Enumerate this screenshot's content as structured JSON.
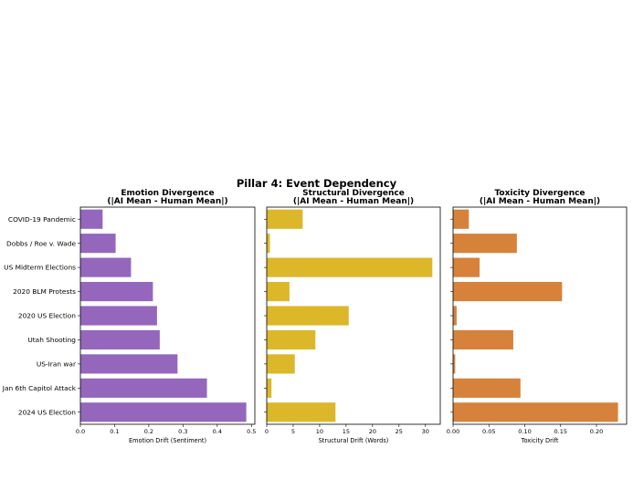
{
  "chart_data": [
    {
      "type": "bar",
      "orientation": "horizontal",
      "suptitle": "Pillar 4: Event Dependency",
      "title_lines": [
        "Emotion Divergence",
        "(|AI Mean - Human Mean|)"
      ],
      "xlabel": "Emotion Drift (Sentiment)",
      "ylabel": "",
      "xlim": [
        0,
        0.51
      ],
      "xticks": [
        0.0,
        0.1,
        0.2,
        0.3,
        0.4,
        0.5
      ],
      "xtick_labels": [
        "0.0",
        "0.1",
        "0.2",
        "0.3",
        "0.4",
        "0.5"
      ],
      "color": "#9467bd",
      "categories": [
        "COVID-19 Pandemic",
        "Dobbs / Roe v. Wade",
        "US Midterm Elections",
        "2020 BLM Protests",
        "2020 US Election",
        "Utah Shooting",
        "US-Iran war",
        "Jan 6th Capitol Attack",
        "2024 US Election"
      ],
      "values": [
        0.065,
        0.103,
        0.148,
        0.212,
        0.224,
        0.232,
        0.284,
        0.37,
        0.485
      ]
    },
    {
      "type": "bar",
      "orientation": "horizontal",
      "title_lines": [
        "Structural Divergence",
        "(|AI Mean - Human Mean|)"
      ],
      "xlabel": "Structural Drift (Words)",
      "ylabel": "",
      "xlim": [
        0,
        32.8
      ],
      "xticks": [
        0,
        5,
        10,
        15,
        20,
        25,
        30
      ],
      "xtick_labels": [
        "0",
        "5",
        "10",
        "15",
        "20",
        "25",
        "30"
      ],
      "color": "#dcb72a",
      "categories": [
        "COVID-19 Pandemic",
        "Dobbs / Roe v. Wade",
        "US Midterm Elections",
        "2020 BLM Protests",
        "2020 US Election",
        "Utah Shooting",
        "US-Iran war",
        "Jan 6th Capitol Attack",
        "2024 US Election"
      ],
      "values": [
        6.8,
        0.6,
        31.3,
        4.3,
        15.5,
        9.2,
        5.3,
        0.9,
        13.0
      ]
    },
    {
      "type": "bar",
      "orientation": "horizontal",
      "title_lines": [
        "Toxicity Divergence",
        "(|AI Mean - Human Mean|)"
      ],
      "xlabel": "Toxicity Drift",
      "ylabel": "",
      "xlim": [
        0,
        0.242
      ],
      "xticks": [
        0.0,
        0.05,
        0.1,
        0.15,
        0.2
      ],
      "xtick_labels": [
        "0.00",
        "0.05",
        "0.10",
        "0.15",
        "0.20"
      ],
      "color": "#d6823a",
      "categories": [
        "COVID-19 Pandemic",
        "Dobbs / Roe v. Wade",
        "US Midterm Elections",
        "2020 BLM Protests",
        "2020 US Election",
        "Utah Shooting",
        "US-Iran war",
        "Jan 6th Capitol Attack",
        "2024 US Election"
      ],
      "values": [
        0.022,
        0.089,
        0.037,
        0.152,
        0.005,
        0.084,
        0.003,
        0.094,
        0.23
      ]
    }
  ]
}
